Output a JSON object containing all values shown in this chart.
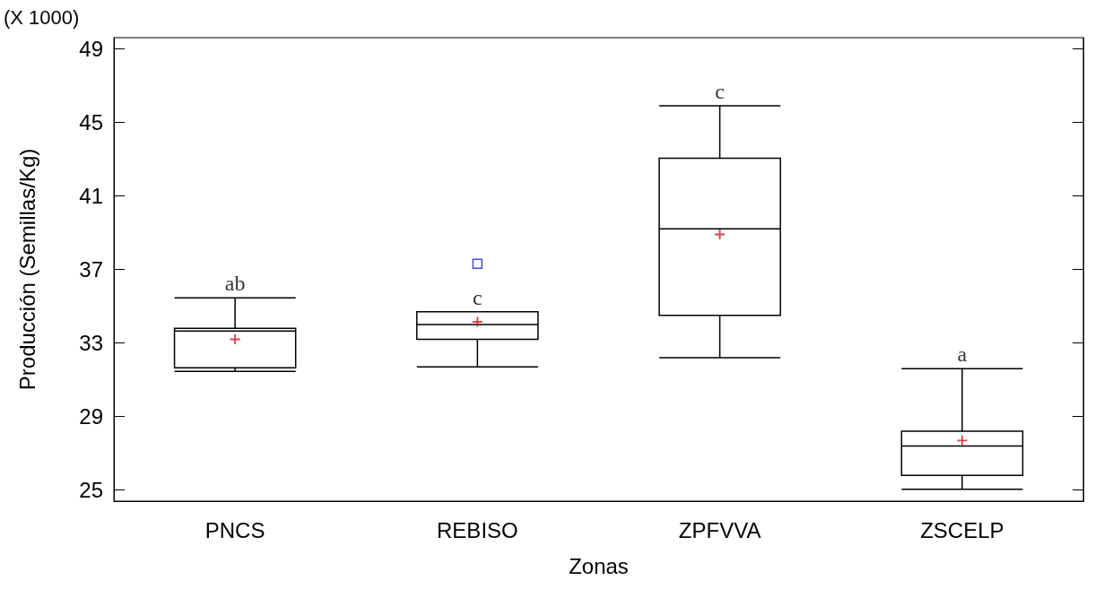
{
  "chart_data": {
    "type": "box",
    "xlabel": "Zonas",
    "ylabel": "Producción (Semillas/Kg)",
    "categories": [
      "PNCS",
      "REBISO",
      "ZPFVVA",
      "ZSCELP"
    ],
    "series": [
      {
        "color": "#000000",
        "boxes": [
          {
            "low": 31.45,
            "q1": 31.65,
            "median": 33.65,
            "q3": 33.8,
            "high": 35.45,
            "mean": 33.2
          },
          {
            "low": 31.7,
            "q1": 33.2,
            "median": 34.0,
            "q3": 34.7,
            "high": 34.7,
            "mean": 34.15,
            "outliers": [
              37.3
            ]
          },
          {
            "low": 32.2,
            "q1": 34.5,
            "median": 39.2,
            "q3": 43.05,
            "high": 45.9,
            "mean": 38.9
          },
          {
            "low": 25.05,
            "q1": 25.8,
            "median": 27.4,
            "q3": 28.2,
            "high": 31.6,
            "mean": 27.7
          }
        ]
      }
    ],
    "ylim": [
      24.4,
      49.6
    ],
    "yticks": [
      25,
      29,
      33,
      37,
      41,
      45,
      49
    ],
    "grid": false,
    "annotations": [
      "(X 1000)",
      "ab",
      "c",
      "c",
      "a"
    ]
  }
}
